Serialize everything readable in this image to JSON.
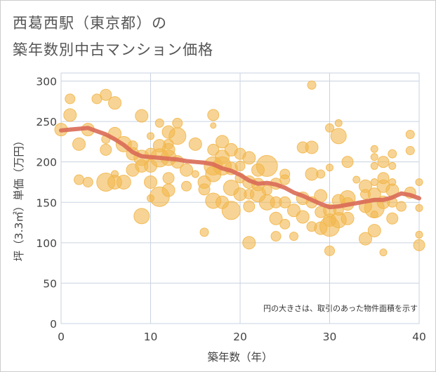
{
  "title_line1": "西葛西駅（東京都）の",
  "title_line2": "築年数別中古マンション価格",
  "chart_data": {
    "type": "scatter",
    "xlabel": "築年数（年）",
    "ylabel": "坪（3.3㎡）単価（万円）",
    "xlim": [
      0,
      40
    ],
    "ylim": [
      0,
      310
    ],
    "xticks": [
      0,
      10,
      20,
      30,
      40
    ],
    "yticks": [
      0,
      50,
      100,
      150,
      200,
      250,
      300
    ],
    "grid": true,
    "annotation": "円の大きさは、取引のあった物件面積を示す",
    "colors": {
      "bubble": "#f2b74e",
      "trend": "#d96a57",
      "grid": "#c9d3e0"
    },
    "bubbles": [
      [
        0,
        240,
        9
      ],
      [
        1,
        278,
        7
      ],
      [
        1,
        258,
        9
      ],
      [
        2,
        222,
        9
      ],
      [
        2,
        178,
        7
      ],
      [
        3,
        240,
        9
      ],
      [
        3,
        175,
        7
      ],
      [
        4,
        278,
        7
      ],
      [
        5,
        283,
        8
      ],
      [
        5,
        175,
        13
      ],
      [
        5,
        215,
        8
      ],
      [
        5,
        228,
        6
      ],
      [
        6,
        273,
        9
      ],
      [
        6,
        235,
        9
      ],
      [
        6,
        185,
        5
      ],
      [
        6,
        175,
        10
      ],
      [
        7,
        175,
        10
      ],
      [
        7,
        222,
        11
      ],
      [
        8,
        210,
        9
      ],
      [
        8,
        190,
        9
      ],
      [
        8,
        220,
        7
      ],
      [
        9,
        257,
        9
      ],
      [
        9,
        205,
        11
      ],
      [
        9,
        195,
        9
      ],
      [
        9,
        133,
        11
      ],
      [
        10,
        210,
        8
      ],
      [
        10,
        195,
        9
      ],
      [
        10,
        175,
        9
      ],
      [
        10,
        155,
        5
      ],
      [
        10,
        232,
        5
      ],
      [
        11,
        248,
        6
      ],
      [
        11,
        220,
        9
      ],
      [
        11,
        205,
        13
      ],
      [
        11,
        157,
        14
      ],
      [
        12,
        237,
        9
      ],
      [
        12,
        222,
        7
      ],
      [
        12,
        215,
        9
      ],
      [
        12,
        205,
        11
      ],
      [
        12,
        180,
        8
      ],
      [
        12,
        165,
        9
      ],
      [
        13,
        248,
        7
      ],
      [
        13,
        232,
        12
      ],
      [
        13,
        200,
        9
      ],
      [
        14,
        190,
        9
      ],
      [
        14,
        170,
        7
      ],
      [
        15,
        222,
        9
      ],
      [
        15,
        185,
        5
      ],
      [
        16,
        175,
        9
      ],
      [
        16,
        166,
        8
      ],
      [
        16,
        113,
        6
      ],
      [
        17,
        258,
        8
      ],
      [
        17,
        245,
        4
      ],
      [
        17,
        215,
        8
      ],
      [
        17,
        195,
        13
      ],
      [
        17,
        185,
        11
      ],
      [
        17,
        152,
        11
      ],
      [
        18,
        225,
        9
      ],
      [
        18,
        206,
        10
      ],
      [
        18,
        195,
        13
      ],
      [
        18,
        150,
        9
      ],
      [
        19,
        215,
        9
      ],
      [
        19,
        192,
        9
      ],
      [
        19,
        168,
        11
      ],
      [
        19,
        140,
        13
      ],
      [
        20,
        210,
        8
      ],
      [
        20,
        195,
        7
      ],
      [
        20,
        180,
        7
      ],
      [
        20,
        160,
        9
      ],
      [
        21,
        205,
        9
      ],
      [
        21,
        175,
        9
      ],
      [
        21,
        160,
        7
      ],
      [
        21,
        145,
        8
      ],
      [
        21,
        100,
        9
      ],
      [
        22,
        190,
        9
      ],
      [
        22,
        172,
        9
      ],
      [
        22,
        160,
        11
      ],
      [
        23,
        195,
        15
      ],
      [
        23,
        165,
        7
      ],
      [
        23,
        150,
        11
      ],
      [
        24,
        173,
        8
      ],
      [
        24,
        150,
        8
      ],
      [
        24,
        130,
        9
      ],
      [
        24,
        108,
        7
      ],
      [
        25,
        185,
        7
      ],
      [
        25,
        178,
        7
      ],
      [
        25,
        150,
        8
      ],
      [
        25,
        123,
        7
      ],
      [
        26,
        140,
        9
      ],
      [
        26,
        108,
        6
      ],
      [
        27,
        218,
        8
      ],
      [
        27,
        155,
        9
      ],
      [
        27,
        132,
        9
      ],
      [
        28,
        185,
        9
      ],
      [
        28,
        295,
        6
      ],
      [
        28,
        218,
        9
      ],
      [
        28,
        150,
        8
      ],
      [
        28,
        120,
        7
      ],
      [
        29,
        185,
        6
      ],
      [
        29,
        158,
        9
      ],
      [
        29,
        138,
        8
      ],
      [
        29,
        118,
        9
      ],
      [
        30,
        242,
        6
      ],
      [
        30,
        193,
        5
      ],
      [
        30,
        140,
        9
      ],
      [
        30,
        128,
        9
      ],
      [
        30,
        120,
        14
      ],
      [
        30,
        90,
        7
      ],
      [
        31,
        248,
        5
      ],
      [
        31,
        232,
        11
      ],
      [
        31,
        152,
        9
      ],
      [
        31,
        140,
        7
      ],
      [
        31,
        128,
        11
      ],
      [
        32,
        200,
        8
      ],
      [
        32,
        155,
        11
      ],
      [
        32,
        148,
        9
      ],
      [
        32,
        130,
        9
      ],
      [
        33,
        178,
        5
      ],
      [
        34,
        170,
        9
      ],
      [
        34,
        160,
        7
      ],
      [
        34,
        145,
        9
      ],
      [
        34,
        105,
        9
      ],
      [
        35,
        216,
        5
      ],
      [
        35,
        206,
        5
      ],
      [
        35,
        195,
        5
      ],
      [
        35,
        175,
        5
      ],
      [
        35,
        160,
        9
      ],
      [
        35,
        143,
        14
      ],
      [
        35,
        135,
        5
      ],
      [
        35,
        115,
        9
      ],
      [
        36,
        200,
        8
      ],
      [
        36,
        180,
        8
      ],
      [
        36,
        170,
        9
      ],
      [
        36,
        150,
        9
      ],
      [
        36,
        88,
        5
      ],
      [
        37,
        210,
        6
      ],
      [
        37,
        195,
        5
      ],
      [
        37,
        175,
        5
      ],
      [
        37,
        165,
        9
      ],
      [
        37,
        150,
        7
      ],
      [
        37,
        130,
        8
      ],
      [
        38,
        145,
        7
      ],
      [
        39,
        234,
        6
      ],
      [
        39,
        214,
        6
      ],
      [
        39,
        162,
        8
      ],
      [
        40,
        175,
        5
      ],
      [
        40,
        143,
        5
      ],
      [
        40,
        110,
        5
      ],
      [
        40,
        97,
        8
      ]
    ],
    "trend": {
      "x": [
        0,
        1,
        2,
        3,
        4,
        5,
        6,
        7,
        8,
        9,
        10,
        11,
        12,
        13,
        14,
        15,
        16,
        17,
        18,
        19,
        20,
        21,
        22,
        23,
        24,
        25,
        26,
        27,
        28,
        29,
        30,
        31,
        32,
        33,
        34,
        35,
        36,
        37,
        38,
        39,
        40
      ],
      "y": [
        239,
        240,
        241,
        242,
        238,
        234,
        228,
        221,
        212,
        207,
        206,
        205,
        204,
        203,
        201,
        200,
        199,
        197,
        192,
        189,
        184,
        177,
        173,
        174,
        172,
        168,
        162,
        158,
        153,
        148,
        144,
        145,
        147,
        149,
        151,
        153,
        153,
        156,
        161,
        159,
        155
      ]
    }
  }
}
